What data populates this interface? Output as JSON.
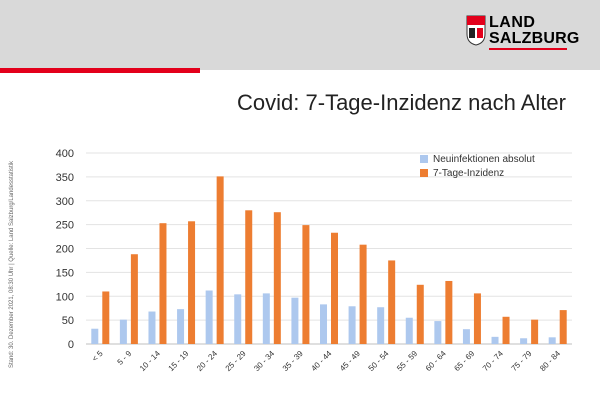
{
  "header": {
    "logo_line1": "LAND",
    "logo_line2": "SALZBURG",
    "logo_icon": "coat-of-arms-icon",
    "accent_color": "#e3001b",
    "bar_color": "#d9d9d9"
  },
  "title": "Covid: 7-Tage-Inzidenz nach Alter",
  "side_note": "Stand: 30. Dezember 2021, 08:30 Uhr | Quelle: Land Salzburg/Landesstatistik",
  "chart_data": {
    "type": "bar",
    "title": "Covid: 7-Tage-Inzidenz nach Alter",
    "xlabel": "",
    "ylabel": "",
    "categories": [
      "< 5",
      "5 - 9",
      "10 - 14",
      "15 - 19",
      "20 - 24",
      "25 - 29",
      "30 - 34",
      "35 - 39",
      "40 - 44",
      "45 - 49",
      "50 - 54",
      "55 - 59",
      "60 - 64",
      "65 - 69",
      "70 - 74",
      "75 - 79",
      "80 - 84"
    ],
    "ylim": [
      0,
      400
    ],
    "yticks": [
      0,
      50,
      100,
      150,
      200,
      250,
      300,
      350,
      400
    ],
    "grid": true,
    "legend_position": "top-right",
    "series": [
      {
        "name": "Neuinfektionen absolut",
        "color": "#adc8ee",
        "values": [
          32,
          51,
          68,
          73,
          112,
          104,
          106,
          97,
          83,
          79,
          77,
          55,
          48,
          31,
          15,
          12,
          14
        ]
      },
      {
        "name": "7-Tage-Inzidenz",
        "color": "#ed7d31",
        "values": [
          110,
          188,
          253,
          257,
          351,
          280,
          276,
          249,
          233,
          208,
          175,
          124,
          132,
          106,
          57,
          51,
          71
        ]
      }
    ]
  }
}
